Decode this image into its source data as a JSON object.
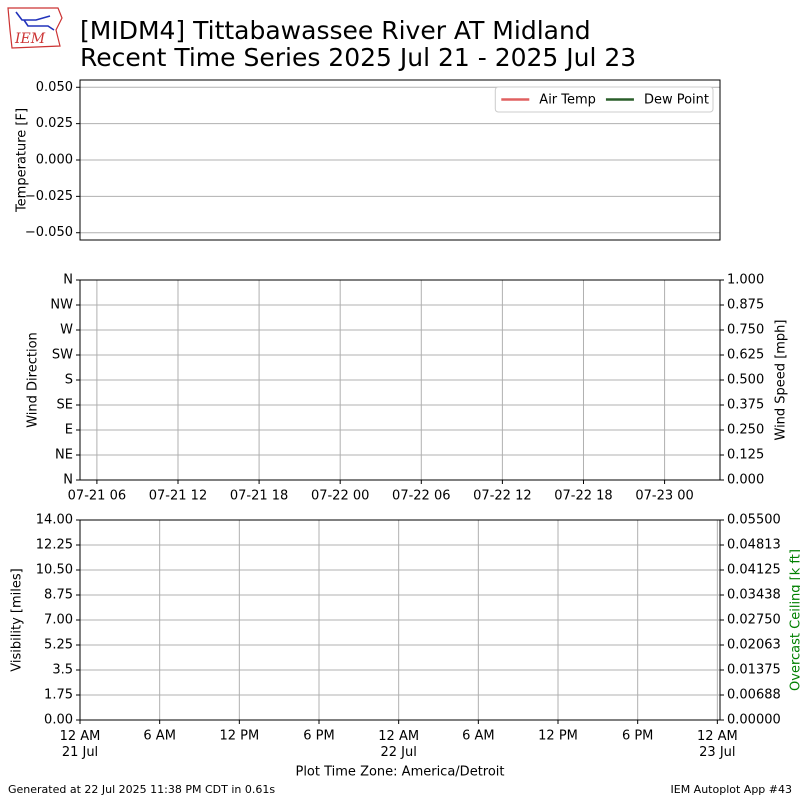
{
  "header": {
    "logo": "IEM",
    "title_lines": [
      "[MIDM4] Tittabawassee River  AT Midland",
      "Recent Time Series 2025 Jul 21 - 2025 Jul 23"
    ]
  },
  "footer": {
    "generated": "Generated at 22 Jul 2025 11:38 PM CDT in 0.61s",
    "app": "IEM Autoplot App #43"
  },
  "chart_data": [
    {
      "type": "line",
      "ylabel": "Temperature [F]",
      "ylim": [
        -0.055,
        0.055
      ],
      "yticks": [
        {
          "value": -0.05,
          "label": "−0.050"
        },
        {
          "value": -0.025,
          "label": "−0.025"
        },
        {
          "value": 0,
          "label": "0.000"
        },
        {
          "value": 0.025,
          "label": "0.025"
        },
        {
          "value": 0.05,
          "label": "0.050"
        }
      ],
      "grid": "y",
      "legend": "upper right",
      "x": [],
      "series": [
        {
          "name": "Air Temp",
          "color": "#e06060",
          "values": []
        },
        {
          "name": "Dew Point",
          "color": "#2a5e2a",
          "values": []
        }
      ]
    },
    {
      "type": "line",
      "ylabel": "Wind Direction",
      "y2label": "Wind Speed [mph]",
      "xlim": [
        4.75,
        52.1
      ],
      "xticks": [
        {
          "value": 6,
          "label": "07-21 06"
        },
        {
          "value": 12,
          "label": "07-21 12"
        },
        {
          "value": 18,
          "label": "07-21 18"
        },
        {
          "value": 24,
          "label": "07-22 00"
        },
        {
          "value": 30,
          "label": "07-22 06"
        },
        {
          "value": 36,
          "label": "07-22 12"
        },
        {
          "value": 42,
          "label": "07-22 18"
        },
        {
          "value": 48,
          "label": "07-23 00"
        }
      ],
      "ylim": [
        0,
        360
      ],
      "yticks": [
        {
          "value": 0,
          "label": "N"
        },
        {
          "value": 45,
          "label": "NE"
        },
        {
          "value": 90,
          "label": "E"
        },
        {
          "value": 135,
          "label": "SE"
        },
        {
          "value": 180,
          "label": "S"
        },
        {
          "value": 225,
          "label": "SW"
        },
        {
          "value": 270,
          "label": "W"
        },
        {
          "value": 315,
          "label": "NW"
        },
        {
          "value": 360,
          "label": "N"
        }
      ],
      "y2lim": [
        0,
        1
      ],
      "y2ticks": [
        {
          "value": 0,
          "label": "0.000"
        },
        {
          "value": 0.125,
          "label": "0.125"
        },
        {
          "value": 0.25,
          "label": "0.250"
        },
        {
          "value": 0.375,
          "label": "0.375"
        },
        {
          "value": 0.5,
          "label": "0.500"
        },
        {
          "value": 0.625,
          "label": "0.625"
        },
        {
          "value": 0.75,
          "label": "0.750"
        },
        {
          "value": 0.875,
          "label": "0.875"
        },
        {
          "value": 1,
          "label": "1.000"
        }
      ],
      "grid": "both"
    },
    {
      "type": "line",
      "ylabel": "Visibility [miles]",
      "y2label": "Overcast Ceiling [k ft]",
      "y2label_color": "#008000",
      "xlabel": "Plot Time Zone: America/Detroit",
      "xlim": [
        0,
        48.2
      ],
      "xticks": [
        {
          "value": 0,
          "label": "12 AM\n21 Jul"
        },
        {
          "value": 6,
          "label": "6 AM"
        },
        {
          "value": 12,
          "label": "12 PM"
        },
        {
          "value": 18,
          "label": "6 PM"
        },
        {
          "value": 24,
          "label": "12 AM\n22 Jul"
        },
        {
          "value": 30,
          "label": "6 AM"
        },
        {
          "value": 36,
          "label": "12 PM"
        },
        {
          "value": 42,
          "label": "6 PM"
        },
        {
          "value": 48,
          "label": "12 AM\n23 Jul"
        }
      ],
      "ylim": [
        0,
        14
      ],
      "yticks": [
        {
          "value": 0,
          "label": "0.00"
        },
        1.75,
        3.5,
        5.25,
        {
          "value": 7,
          "label": "7.00"
        },
        8.75,
        {
          "value": 10.5,
          "label": "10.50"
        },
        12.25,
        {
          "value": 14,
          "label": "14.00"
        }
      ],
      "y2lim": [
        0,
        0.055
      ],
      "y2ticks": [
        {
          "value": 0,
          "label": "0.00000"
        },
        {
          "value": 0.006875,
          "label": "0.00688"
        },
        {
          "value": 0.01375,
          "label": "0.01375"
        },
        {
          "value": 0.020625,
          "label": "0.02063"
        },
        {
          "value": 0.0275,
          "label": "0.02750"
        },
        {
          "value": 0.034375,
          "label": "0.03438"
        },
        {
          "value": 0.04125,
          "label": "0.04125"
        },
        {
          "value": 0.048125,
          "label": "0.04813"
        },
        {
          "value": 0.055,
          "label": "0.05500"
        }
      ],
      "grid": "both"
    }
  ]
}
